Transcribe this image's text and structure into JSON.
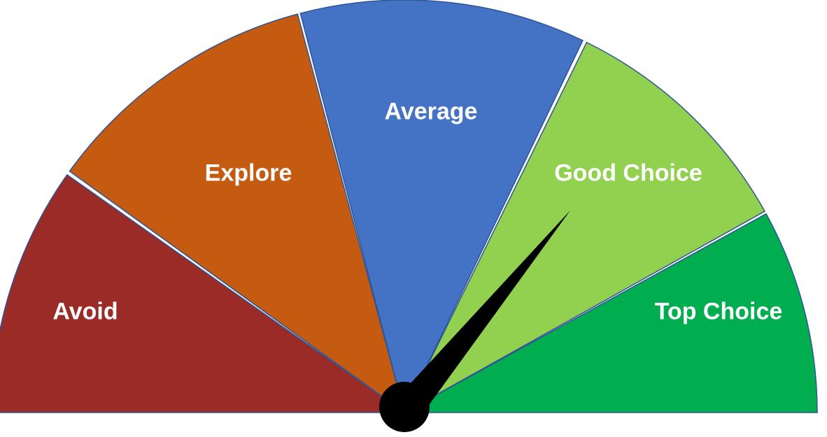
{
  "gauge": {
    "segments": [
      {
        "label": "Avoid",
        "color": "#9a2b27"
      },
      {
        "label": "Explore",
        "color": "#c55a11"
      },
      {
        "label": "Average",
        "color": "#4472c4"
      },
      {
        "label": "Good Choice",
        "color": "#92d050"
      },
      {
        "label": "Top Choice",
        "color": "#00ad4f"
      }
    ],
    "outline_color": "#2f5597",
    "needle_color": "#000000",
    "needle_points_to": "Good Choice"
  }
}
